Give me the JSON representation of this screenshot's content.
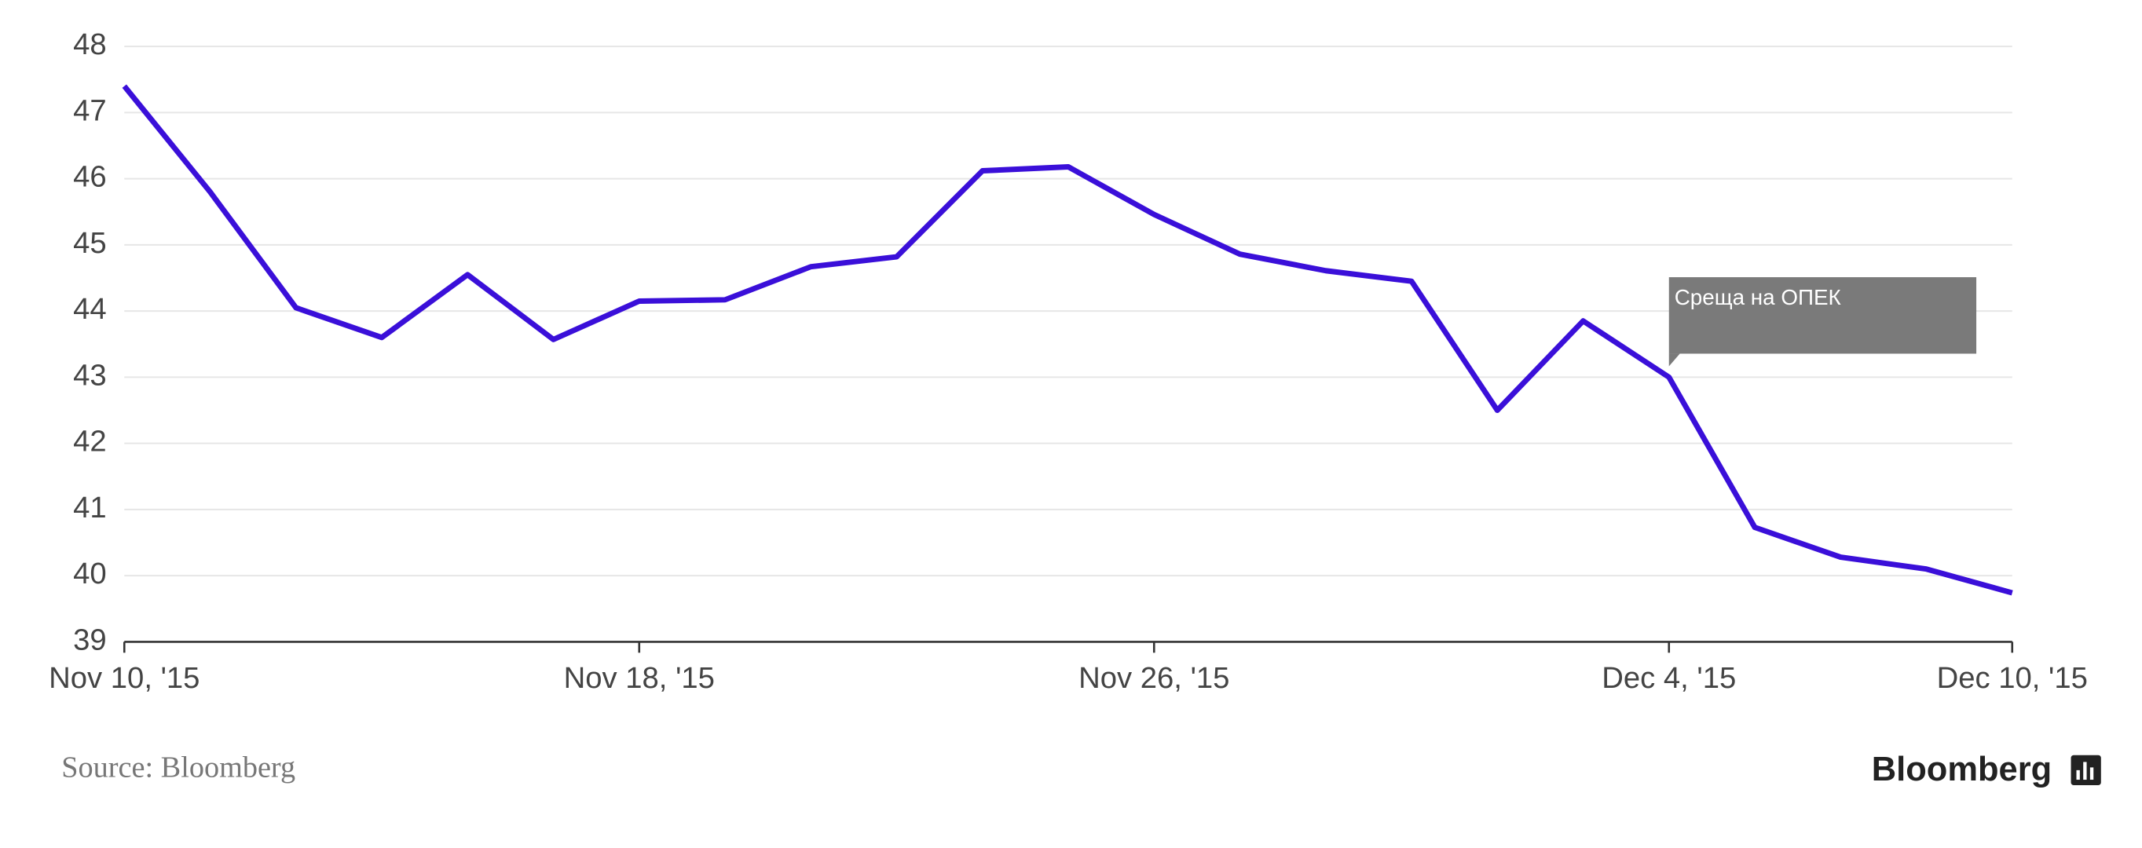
{
  "chart_data": {
    "type": "line",
    "categories": [
      "Nov 10, '15",
      null,
      null,
      null,
      null,
      null,
      "Nov 18, '15",
      null,
      null,
      null,
      null,
      null,
      "Nov 26, '15",
      null,
      null,
      null,
      null,
      null,
      "Dec 4, '15",
      null,
      null,
      null,
      "Dec 10, '15"
    ],
    "series": [
      {
        "color": "#3a0fd9",
        "values": [
          47.4,
          45.8,
          44.05,
          43.6,
          44.55,
          43.57,
          44.15,
          44.17,
          44.67,
          44.82,
          46.12,
          46.18,
          45.46,
          44.86,
          44.61,
          44.45,
          42.5,
          43.85,
          43.0,
          40.73,
          40.28,
          40.1,
          39.74
        ]
      }
    ],
    "ylim": [
      39,
      48
    ],
    "yticks": [
      39,
      40,
      41,
      42,
      43,
      44,
      45,
      46,
      47,
      48
    ],
    "grid": true,
    "annotation": {
      "text": "Среща на ОПЕК",
      "index": 18
    },
    "source": "Source: Bloomberg",
    "brand": "Bloomberg"
  }
}
